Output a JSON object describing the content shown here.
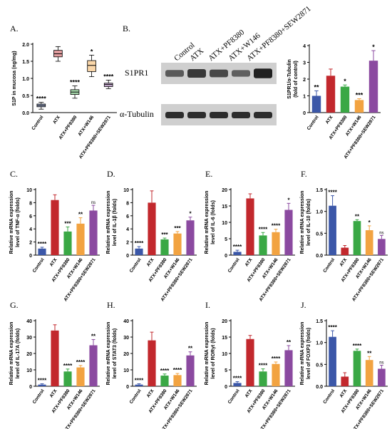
{
  "figure": {
    "panel_labels": [
      "A.",
      "B.",
      "C.",
      "D.",
      "E.",
      "F.",
      "G.",
      "H.",
      "I.",
      "J."
    ],
    "western_blot": {
      "lanes": [
        "Control",
        "ATX",
        "ATX+PF8380",
        "ATX+W146",
        "ATX+PF8380+SEW2871"
      ],
      "bands": [
        "S1PR1",
        "α-Tubulin"
      ],
      "s1pr1_intensity": [
        0.45,
        0.75,
        0.6,
        0.4,
        0.95
      ],
      "tubulin_intensity": [
        0.85,
        0.85,
        0.85,
        0.85,
        0.85
      ]
    }
  },
  "colors": {
    "control": "#3b57a8",
    "atx": "#c2282d",
    "pf8380": "#3aa845",
    "w146": "#f2a341",
    "sew2871": "#8b4aa0"
  },
  "chart_data": [
    {
      "id": "A",
      "type": "box",
      "ylabel": "S1P in mucosa (ng/mg)",
      "ylim": [
        0.0,
        2.0
      ],
      "yticks": [
        "0.0",
        "0.5",
        "1.0",
        "1.5",
        "2.0"
      ],
      "categories": [
        "Control",
        "ATX",
        "ATX+PF8380",
        "ATX+W146",
        "ATX+PF8380+SEW2871"
      ],
      "boxes": [
        {
          "min": 0.1,
          "q1": 0.17,
          "median": 0.21,
          "q3": 0.25,
          "max": 0.3
        },
        {
          "min": 1.5,
          "q1": 1.63,
          "median": 1.72,
          "q3": 1.82,
          "max": 1.93
        },
        {
          "min": 0.42,
          "q1": 0.53,
          "median": 0.6,
          "q3": 0.67,
          "max": 0.78
        },
        {
          "min": 1.05,
          "q1": 1.2,
          "median": 1.38,
          "q3": 1.52,
          "max": 1.68
        },
        {
          "min": 0.7,
          "q1": 0.76,
          "median": 0.82,
          "q3": 0.86,
          "max": 0.95
        }
      ],
      "significance": [
        "****",
        "",
        "****",
        "*",
        "****"
      ]
    },
    {
      "id": "B",
      "type": "bar",
      "ylabel": "S1PR1/α-Tubulin (fold of control)",
      "ylim": [
        0,
        4
      ],
      "yticks": [
        "0",
        "1",
        "2",
        "3",
        "4"
      ],
      "categories": [
        "Control",
        "ATX",
        "ATX+PF8380",
        "ATX+W146",
        "ATX+PF8380+SEW2871"
      ],
      "values": [
        1.0,
        2.2,
        1.55,
        0.75,
        3.1
      ],
      "errors": [
        0.3,
        0.4,
        0.1,
        0.08,
        0.6
      ],
      "significance": [
        "**",
        "",
        "*",
        "***",
        "*"
      ]
    },
    {
      "id": "C",
      "type": "bar",
      "ylabel": "Relative mRNA expression level of TNF-α (folds)",
      "ylim": [
        0,
        10
      ],
      "yticks": [
        "0",
        "2",
        "4",
        "6",
        "8",
        "10"
      ],
      "categories": [
        "Control",
        "ATX",
        "ATX+PF8380",
        "ATX+W146",
        "ATX+PF8380+SEW2871"
      ],
      "values": [
        1.0,
        8.4,
        3.6,
        4.8,
        6.8
      ],
      "errors": [
        0.2,
        0.8,
        0.7,
        0.9,
        0.8
      ],
      "significance": [
        "****",
        "",
        "***",
        "**",
        "ns"
      ]
    },
    {
      "id": "D",
      "type": "bar",
      "ylabel": "Relative mRNA expression level of IL-1β (folds)",
      "ylim": [
        0,
        10
      ],
      "yticks": [
        "0",
        "2",
        "4",
        "6",
        "8",
        "10"
      ],
      "categories": [
        "Control",
        "ATX",
        "ATX+PF8380",
        "ATX+W146",
        "ATX+PF8380+SEW2871"
      ],
      "values": [
        1.0,
        8.0,
        2.4,
        3.3,
        5.3
      ],
      "errors": [
        0.3,
        1.8,
        0.2,
        0.3,
        0.5
      ],
      "significance": [
        "****",
        "",
        "***",
        "***",
        "*"
      ]
    },
    {
      "id": "E",
      "type": "bar",
      "ylabel": "Relative mRNA expression level of IL-6 (folds)",
      "ylim": [
        0,
        20
      ],
      "yticks": [
        "0",
        "5",
        "10",
        "15",
        "20"
      ],
      "categories": [
        "Control",
        "ATX",
        "ATX+PF8380",
        "ATX+W146",
        "ATX+PF8380+SEW2871"
      ],
      "values": [
        1.0,
        17.3,
        6.0,
        7.0,
        13.8
      ],
      "errors": [
        0.5,
        1.4,
        0.9,
        0.9,
        2.0
      ],
      "significance": [
        "****",
        "",
        "****",
        "****",
        "*"
      ]
    },
    {
      "id": "F",
      "type": "bar",
      "ylabel": "Relative mRNA expression level of IL-10 (folds)",
      "ylim": [
        0.0,
        1.5
      ],
      "yticks": [
        "0.0",
        "0.5",
        "1.0",
        "1.5"
      ],
      "categories": [
        "Control",
        "ATX",
        "ATX+PF8380",
        "ATX+W146",
        "ATX+PF8380+SEW2871"
      ],
      "values": [
        1.13,
        0.17,
        0.78,
        0.57,
        0.37
      ],
      "errors": [
        0.23,
        0.05,
        0.03,
        0.1,
        0.08
      ],
      "significance": [
        "****",
        "",
        "**",
        "*",
        "ns"
      ]
    },
    {
      "id": "G",
      "type": "bar",
      "ylabel": "Relative mRNA expression level of IL-17A (folds)",
      "ylim": [
        0,
        40
      ],
      "yticks": [
        "0",
        "10",
        "20",
        "30",
        "40"
      ],
      "categories": [
        "Control",
        "ATX",
        "ATX+PF8380",
        "ATX+W146",
        "ATX+PF8380+SEW2871"
      ],
      "values": [
        1.0,
        34.0,
        9.0,
        11.5,
        25.0
      ],
      "errors": [
        0.5,
        3.5,
        1.5,
        1.2,
        3.5
      ],
      "significance": [
        "****",
        "",
        "****",
        "****",
        "**"
      ]
    },
    {
      "id": "H",
      "type": "bar",
      "ylabel": "Relative mRNA expression level of STAT3 (folds)",
      "ylim": [
        0,
        40
      ],
      "yticks": [
        "0",
        "10",
        "20",
        "30",
        "40"
      ],
      "categories": [
        "Control",
        "ATX",
        "ATX+PF8380",
        "ATX+W146",
        "ATX+PF8380+SEW2871"
      ],
      "values": [
        1.0,
        28.0,
        6.5,
        6.8,
        18.8
      ],
      "errors": [
        0.5,
        5.0,
        1.0,
        1.0,
        2.2
      ],
      "significance": [
        "****",
        "",
        "****",
        "****",
        "**"
      ]
    },
    {
      "id": "I",
      "type": "bar",
      "ylabel": "Relative mRNA expression level of RORγt (folds)",
      "ylim": [
        0,
        20
      ],
      "yticks": [
        "0",
        "5",
        "10",
        "15",
        "20"
      ],
      "categories": [
        "Control",
        "ATX",
        "ATX+PF8380",
        "ATX+W146",
        "ATX+PF8380+SEW2871"
      ],
      "values": [
        1.0,
        14.4,
        4.5,
        6.8,
        11.0
      ],
      "errors": [
        0.4,
        1.1,
        0.8,
        0.6,
        1.4
      ],
      "significance": [
        "****",
        "",
        "****",
        "****",
        "**"
      ]
    },
    {
      "id": "J",
      "type": "bar",
      "ylabel": "Relative mRNA expression level of FOXP3 (folds)",
      "ylim": [
        0.0,
        1.5
      ],
      "yticks": [
        "0.0",
        "0.5",
        "1.0",
        "1.5"
      ],
      "categories": [
        "Control",
        "ATX",
        "ATX+PF8380",
        "ATX+W146",
        "ATX+PF8380+SEW2871"
      ],
      "values": [
        1.13,
        0.22,
        0.81,
        0.6,
        0.4
      ],
      "errors": [
        0.14,
        0.09,
        0.04,
        0.08,
        0.08
      ],
      "significance": [
        "****",
        "",
        "****",
        "**",
        "ns"
      ]
    }
  ]
}
